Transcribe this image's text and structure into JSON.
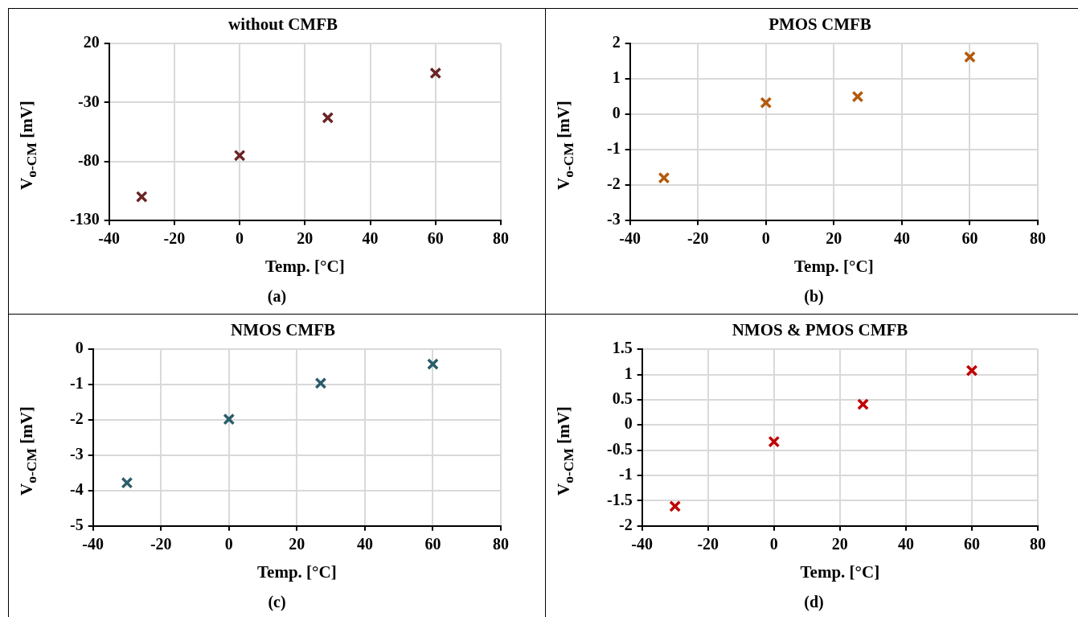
{
  "chart_data": [
    {
      "type": "scatter",
      "title": "without CMFB",
      "xlabel": "Temp. [°C]",
      "ylabel": "V$_{o-CM}$ [mV]",
      "annotations": [
        "(a)"
      ],
      "x": [
        -30,
        0,
        27,
        60
      ],
      "series": [
        {
          "color": "#6b2323",
          "values": [
            -110,
            -75,
            -43,
            -5
          ]
        }
      ],
      "xlim": [
        -40,
        80
      ],
      "xticks": [
        -40,
        -20,
        0,
        20,
        40,
        60,
        80
      ],
      "ylim": [
        -130,
        20
      ],
      "yticks": [
        -130,
        -80,
        -30,
        20
      ],
      "grid": true,
      "legend": false,
      "marker": "cross"
    },
    {
      "type": "scatter",
      "title": "PMOS CMFB",
      "xlabel": "Temp. [°C]",
      "ylabel": "V$_{o-CM}$ [mV]",
      "annotations": [
        "(b)"
      ],
      "x": [
        -30,
        0,
        27,
        60
      ],
      "series": [
        {
          "color": "#b35a0b",
          "values": [
            -1.8,
            0.33,
            0.5,
            1.62
          ]
        }
      ],
      "xlim": [
        -40,
        80
      ],
      "xticks": [
        -40,
        -20,
        0,
        20,
        40,
        60,
        80
      ],
      "ylim": [
        -3,
        2
      ],
      "yticks": [
        -3,
        -2,
        -1,
        0,
        1,
        2
      ],
      "grid": true,
      "legend": false,
      "marker": "cross"
    },
    {
      "type": "scatter",
      "title": "NMOS CMFB",
      "xlabel": "Temp. [°C]",
      "ylabel": "V$_{o-CM}$ [mV]",
      "annotations": [
        "(c)"
      ],
      "x": [
        -30,
        0,
        27,
        60
      ],
      "series": [
        {
          "color": "#2a5d6b",
          "values": [
            -3.78,
            -1.98,
            -0.96,
            -0.42
          ]
        }
      ],
      "xlim": [
        -40,
        80
      ],
      "xticks": [
        -40,
        -20,
        0,
        20,
        40,
        60,
        80
      ],
      "ylim": [
        -5,
        0
      ],
      "yticks": [
        -5,
        -4,
        -3,
        -2,
        -1,
        0
      ],
      "grid": true,
      "legend": false,
      "marker": "cross"
    },
    {
      "type": "scatter",
      "title": "NMOS & PMOS CMFB",
      "xlabel": "Temp. [°C]",
      "ylabel": "V$_{o-CM}$ [mV]",
      "annotations": [
        "(d)"
      ],
      "x": [
        -30,
        0,
        27,
        60
      ],
      "series": [
        {
          "color": "#c00000",
          "values": [
            -1.61,
            -0.33,
            0.41,
            1.08
          ]
        }
      ],
      "xlim": [
        -40,
        80
      ],
      "xticks": [
        -40,
        -20,
        0,
        20,
        40,
        60,
        80
      ],
      "ylim": [
        -2,
        1.5
      ],
      "yticks": [
        -2,
        -1.5,
        -1,
        -0.5,
        0,
        0.5,
        1,
        1.5
      ],
      "grid": true,
      "legend": false,
      "marker": "cross"
    }
  ]
}
